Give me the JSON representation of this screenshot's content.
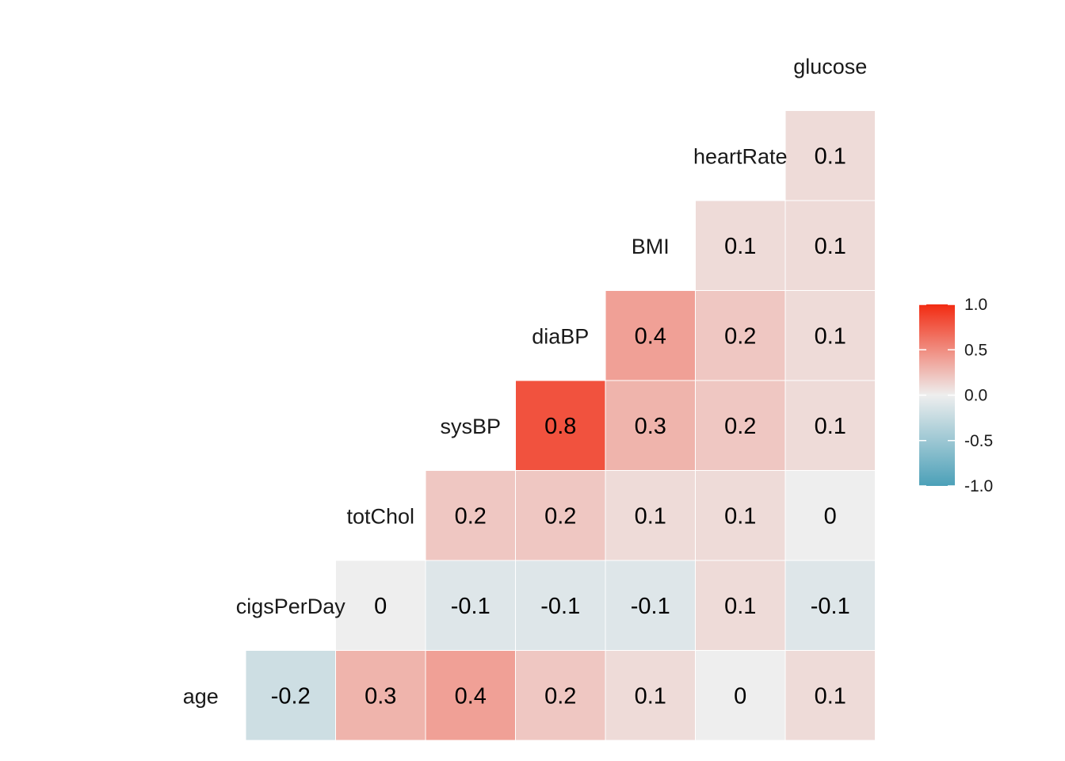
{
  "chart_data": {
    "type": "heatmap",
    "variables": [
      "age",
      "cigsPerDay",
      "totChol",
      "sysBP",
      "diaBP",
      "BMI",
      "heartRate",
      "glucose"
    ],
    "cells": [
      {
        "row": "age",
        "col": "cigsPerDay",
        "value": -0.2,
        "label": "-0.2"
      },
      {
        "row": "age",
        "col": "totChol",
        "value": 0.3,
        "label": "0.3"
      },
      {
        "row": "age",
        "col": "sysBP",
        "value": 0.4,
        "label": "0.4"
      },
      {
        "row": "age",
        "col": "diaBP",
        "value": 0.2,
        "label": "0.2"
      },
      {
        "row": "age",
        "col": "BMI",
        "value": 0.1,
        "label": "0.1"
      },
      {
        "row": "age",
        "col": "heartRate",
        "value": 0.0,
        "label": "0"
      },
      {
        "row": "age",
        "col": "glucose",
        "value": 0.1,
        "label": "0.1"
      },
      {
        "row": "cigsPerDay",
        "col": "totChol",
        "value": 0.0,
        "label": "0"
      },
      {
        "row": "cigsPerDay",
        "col": "sysBP",
        "value": -0.1,
        "label": "-0.1"
      },
      {
        "row": "cigsPerDay",
        "col": "diaBP",
        "value": -0.1,
        "label": "-0.1"
      },
      {
        "row": "cigsPerDay",
        "col": "BMI",
        "value": -0.1,
        "label": "-0.1"
      },
      {
        "row": "cigsPerDay",
        "col": "heartRate",
        "value": 0.1,
        "label": "0.1"
      },
      {
        "row": "cigsPerDay",
        "col": "glucose",
        "value": -0.1,
        "label": "-0.1"
      },
      {
        "row": "totChol",
        "col": "sysBP",
        "value": 0.2,
        "label": "0.2"
      },
      {
        "row": "totChol",
        "col": "diaBP",
        "value": 0.2,
        "label": "0.2"
      },
      {
        "row": "totChol",
        "col": "BMI",
        "value": 0.1,
        "label": "0.1"
      },
      {
        "row": "totChol",
        "col": "heartRate",
        "value": 0.1,
        "label": "0.1"
      },
      {
        "row": "totChol",
        "col": "glucose",
        "value": 0.0,
        "label": "0"
      },
      {
        "row": "sysBP",
        "col": "diaBP",
        "value": 0.8,
        "label": "0.8"
      },
      {
        "row": "sysBP",
        "col": "BMI",
        "value": 0.3,
        "label": "0.3"
      },
      {
        "row": "sysBP",
        "col": "heartRate",
        "value": 0.2,
        "label": "0.2"
      },
      {
        "row": "sysBP",
        "col": "glucose",
        "value": 0.1,
        "label": "0.1"
      },
      {
        "row": "diaBP",
        "col": "BMI",
        "value": 0.4,
        "label": "0.4"
      },
      {
        "row": "diaBP",
        "col": "heartRate",
        "value": 0.2,
        "label": "0.2"
      },
      {
        "row": "diaBP",
        "col": "glucose",
        "value": 0.1,
        "label": "0.1"
      },
      {
        "row": "BMI",
        "col": "heartRate",
        "value": 0.1,
        "label": "0.1"
      },
      {
        "row": "BMI",
        "col": "glucose",
        "value": 0.1,
        "label": "0.1"
      },
      {
        "row": "heartRate",
        "col": "glucose",
        "value": 0.1,
        "label": "0.1"
      }
    ],
    "color_scale": {
      "low": "#4BA0B8",
      "mid": "#EEEEEE",
      "high": "#F22B12",
      "range": [
        -1.0,
        1.0
      ]
    },
    "legend": {
      "position": "right",
      "ticks": [
        "1.0",
        "0.5",
        "0.0",
        "-0.5",
        "-1.0"
      ],
      "tick_values": [
        1.0,
        0.5,
        0.0,
        -0.5,
        -1.0
      ]
    }
  }
}
